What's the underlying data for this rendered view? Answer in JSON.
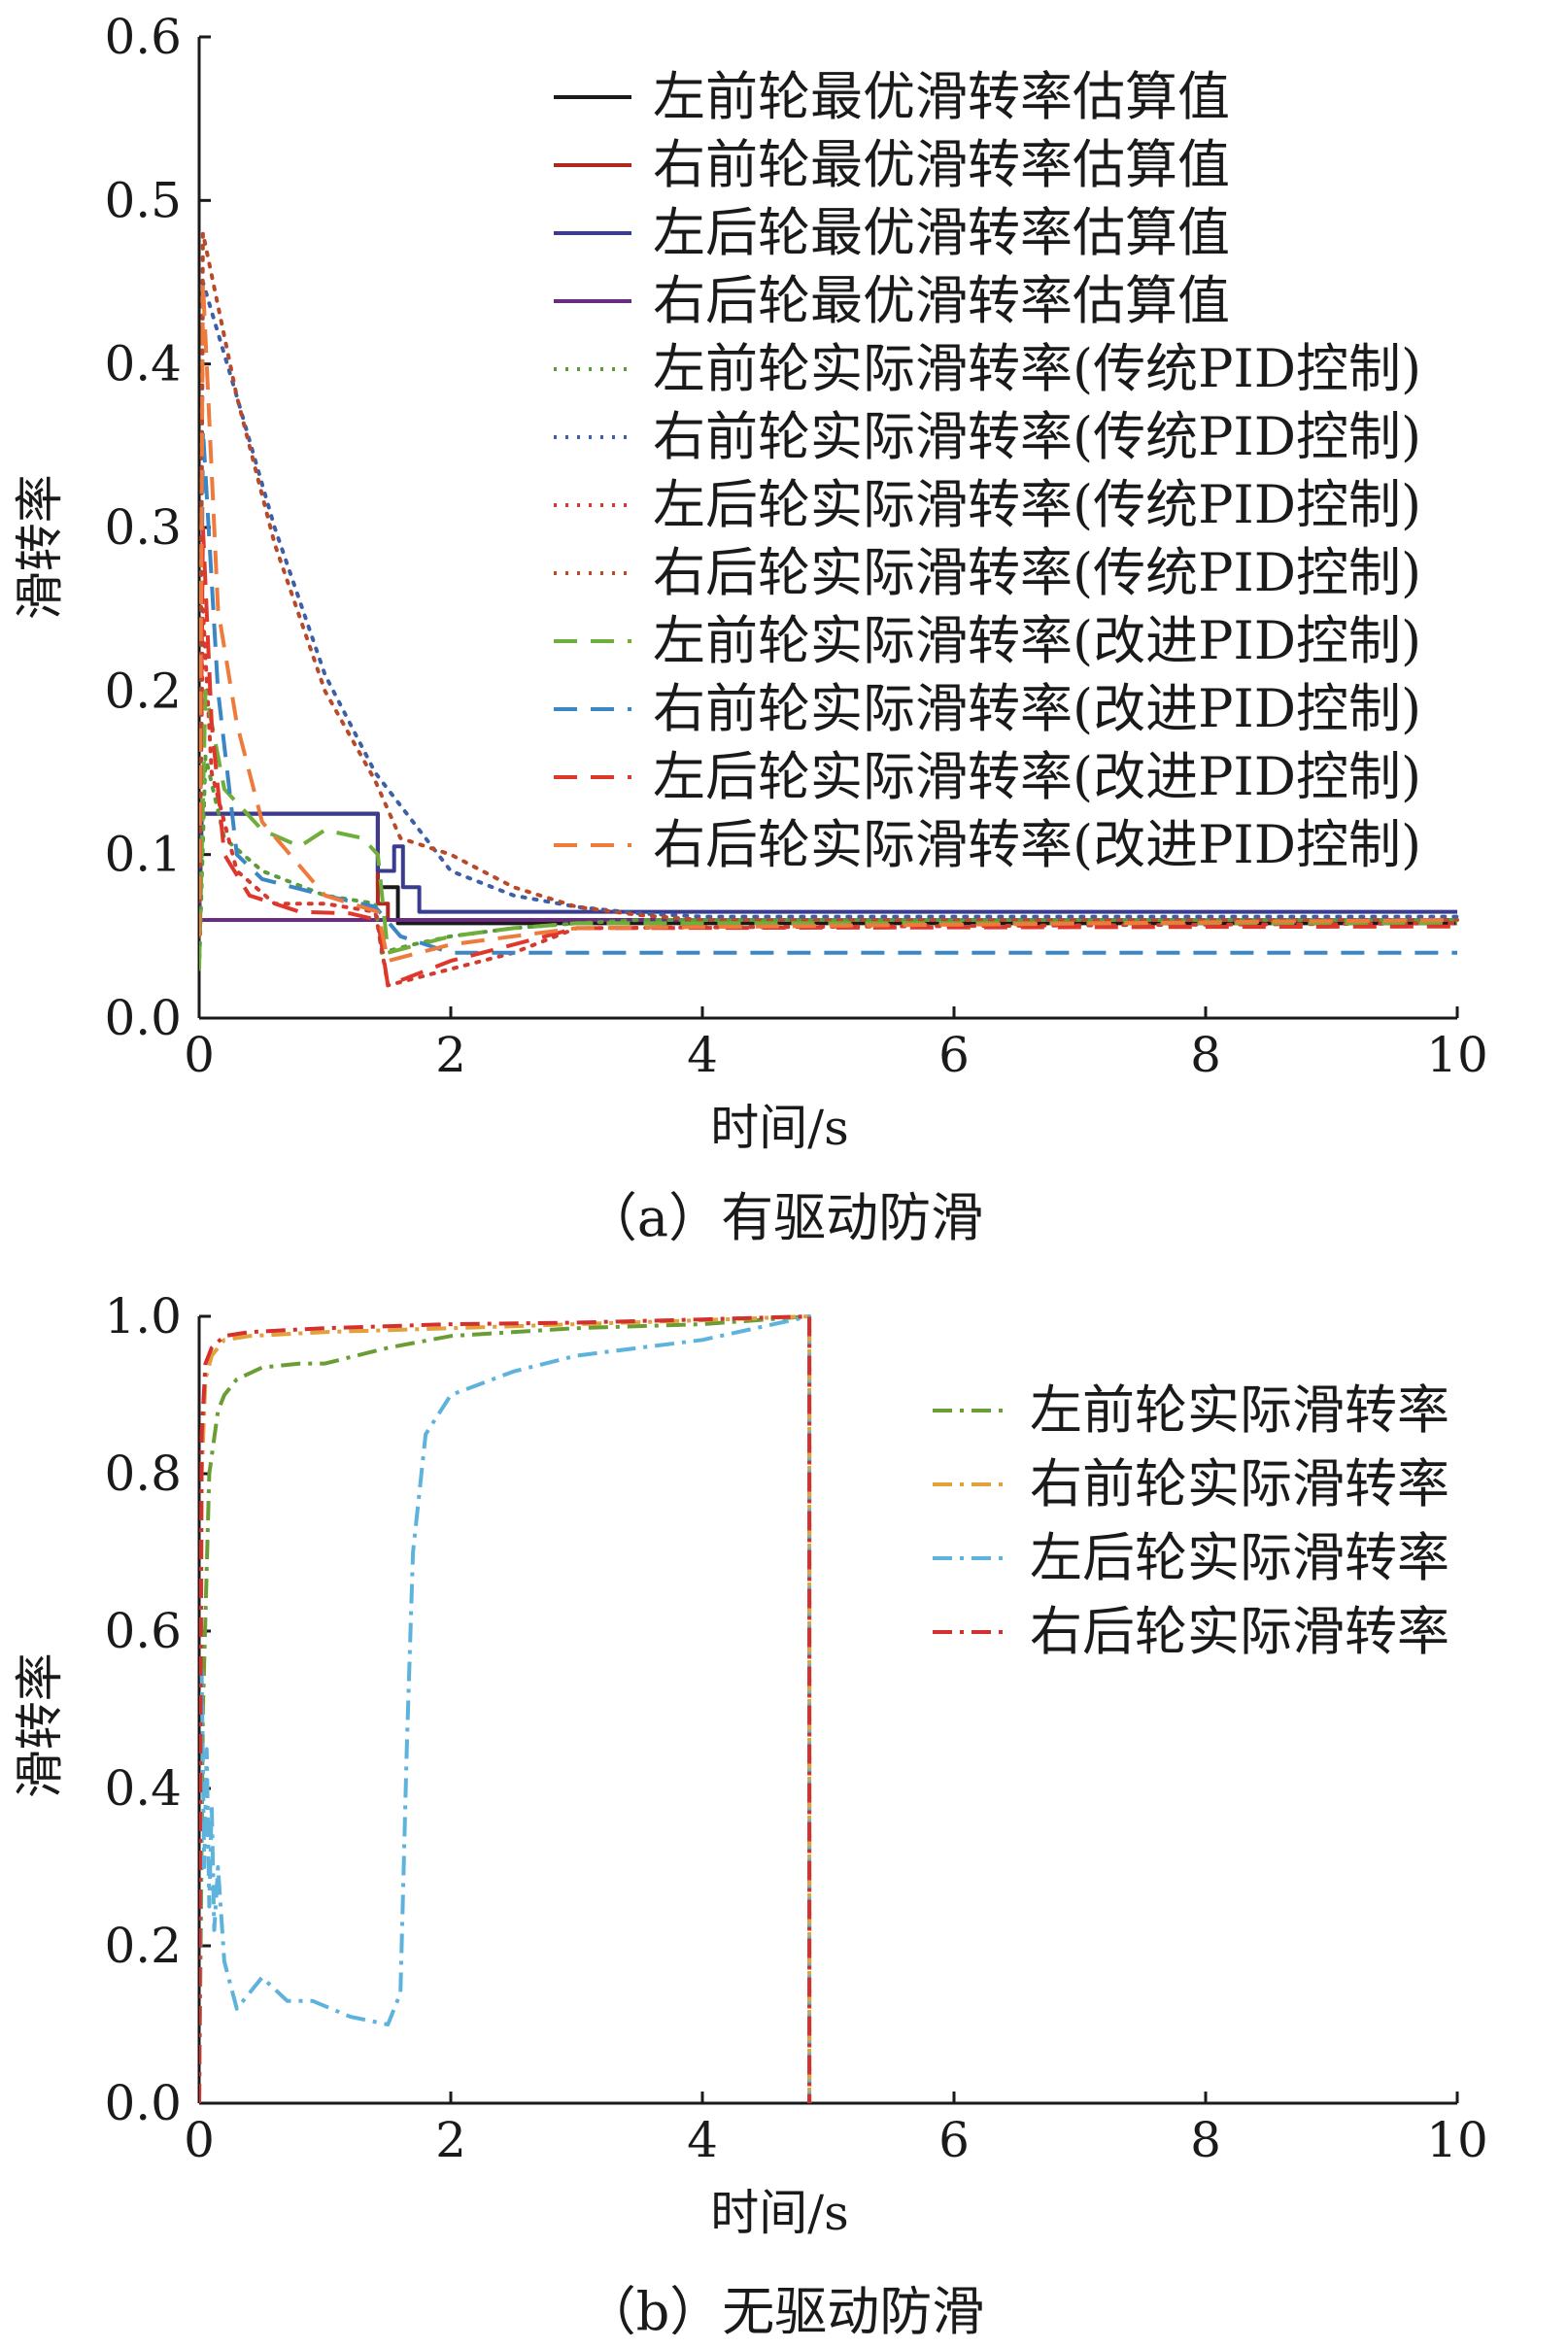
{
  "charts": [
    {
      "caption": "（a）有驱动防滑",
      "chart_data": {
        "type": "line",
        "title": "",
        "xlabel": "时间/s",
        "ylabel": "滑转率",
        "xlim": [
          0,
          10
        ],
        "ylim": [
          0,
          0.6
        ],
        "xticks": [
          "0",
          "2",
          "4",
          "6",
          "8",
          "10"
        ],
        "yticks": [
          "0.0",
          "0.1",
          "0.2",
          "0.3",
          "0.4",
          "0.5",
          "0.6"
        ],
        "legend_position": "top-right",
        "grid": false,
        "series": [
          {
            "name": "左前轮最优滑转率估算值",
            "color": "#1a1a1a",
            "style": "solid",
            "x": [
              0,
              0.02,
              1.42,
              1.42,
              1.58,
              1.58,
              10
            ],
            "y": [
              0.06,
              0.125,
              0.125,
              0.08,
              0.08,
              0.058,
              0.058
            ]
          },
          {
            "name": "右前轮最优滑转率估算值",
            "color": "#b0281f",
            "style": "solid",
            "x": [
              0,
              0.02,
              1.42,
              1.42,
              1.5,
              1.5,
              10
            ],
            "y": [
              0.06,
              0.125,
              0.125,
              0.07,
              0.07,
              0.06,
              0.06
            ]
          },
          {
            "name": "左后轮最优滑转率估算值",
            "color": "#3a3d8f",
            "style": "solid",
            "x": [
              0,
              0.02,
              1.42,
              1.42,
              1.55,
              1.55,
              1.62,
              1.62,
              1.75,
              1.75,
              10
            ],
            "y": [
              0.06,
              0.125,
              0.125,
              0.09,
              0.09,
              0.105,
              0.105,
              0.08,
              0.08,
              0.065,
              0.065
            ]
          },
          {
            "name": "右后轮最优滑转率估算值",
            "color": "#6b2b80",
            "style": "solid",
            "x": [
              0,
              0.02,
              1.42,
              1.42,
              10
            ],
            "y": [
              0.06,
              0.06,
              0.06,
              0.06,
              0.06
            ]
          },
          {
            "name": "左前轮实际滑转率(传统PID控制)",
            "color": "#5a9b3b",
            "style": "dotted",
            "x": [
              0,
              0.05,
              0.2,
              0.5,
              1.0,
              1.4,
              1.45,
              1.7,
              2.0,
              2.5,
              3.0,
              3.5,
              10
            ],
            "y": [
              0.03,
              0.16,
              0.11,
              0.09,
              0.075,
              0.07,
              0.04,
              0.045,
              0.05,
              0.055,
              0.058,
              0.06,
              0.06
            ]
          },
          {
            "name": "右前轮实际滑转率(传统PID控制)",
            "color": "#3e5fa8",
            "style": "dotted",
            "x": [
              0,
              0.03,
              0.3,
              0.6,
              1.0,
              1.4,
              1.6,
              2.0,
              2.5,
              3.0,
              3.5,
              4.0,
              10
            ],
            "y": [
              0.05,
              0.45,
              0.38,
              0.3,
              0.21,
              0.15,
              0.13,
              0.09,
              0.075,
              0.068,
              0.064,
              0.062,
              0.062
            ]
          },
          {
            "name": "左后轮实际滑转率(传统PID控制)",
            "color": "#d33a30",
            "style": "dotted",
            "x": [
              0,
              0.03,
              0.1,
              0.3,
              0.6,
              1.0,
              1.4,
              1.5,
              2.0,
              2.5,
              3.0,
              10
            ],
            "y": [
              0.05,
              0.25,
              0.15,
              0.09,
              0.07,
              0.07,
              0.065,
              0.02,
              0.03,
              0.04,
              0.055,
              0.058
            ]
          },
          {
            "name": "右后轮实际滑转率(传统PID控制)",
            "color": "#b84a2a",
            "style": "dotted",
            "x": [
              0,
              0.03,
              0.3,
              0.6,
              1.0,
              1.4,
              1.6,
              2.0,
              2.5,
              3.0,
              3.5,
              4.0,
              10
            ],
            "y": [
              0.05,
              0.48,
              0.38,
              0.29,
              0.2,
              0.145,
              0.11,
              0.1,
              0.08,
              0.068,
              0.063,
              0.06,
              0.06
            ]
          },
          {
            "name": "左前轮实际滑转率(改进PID控制)",
            "color": "#6fae3a",
            "style": "dashed",
            "x": [
              0,
              0.05,
              0.2,
              0.5,
              0.8,
              1.0,
              1.3,
              1.42,
              1.5,
              2.0,
              2.5,
              3.0,
              10
            ],
            "y": [
              0.03,
              0.2,
              0.14,
              0.115,
              0.105,
              0.115,
              0.11,
              0.1,
              0.04,
              0.05,
              0.055,
              0.058,
              0.058
            ]
          },
          {
            "name": "右前轮实际滑转率(改进PID控制)",
            "color": "#3b86c4",
            "style": "dashed",
            "x": [
              0,
              0.03,
              0.15,
              0.3,
              0.5,
              1.0,
              1.4,
              1.6,
              2.0,
              2.5,
              3.0,
              10
            ],
            "y": [
              0.05,
              0.36,
              0.2,
              0.1,
              0.085,
              0.075,
              0.068,
              0.05,
              0.04,
              0.04,
              0.04,
              0.04
            ]
          },
          {
            "name": "左后轮实际滑转率(改进PID控制)",
            "color": "#e0372d",
            "style": "dashed",
            "x": [
              0,
              0.03,
              0.1,
              0.2,
              0.4,
              0.8,
              1.2,
              1.42,
              1.5,
              2.0,
              2.5,
              3.0,
              10
            ],
            "y": [
              0.05,
              0.3,
              0.18,
              0.1,
              0.075,
              0.065,
              0.064,
              0.06,
              0.02,
              0.035,
              0.045,
              0.055,
              0.056
            ]
          },
          {
            "name": "右后轮实际滑转率(改进PID控制)",
            "color": "#ee7a3c",
            "style": "dashed",
            "x": [
              0,
              0.03,
              0.15,
              0.3,
              0.5,
              1.0,
              1.42,
              1.5,
              2.0,
              2.5,
              3.0,
              10
            ],
            "y": [
              0.05,
              0.45,
              0.25,
              0.18,
              0.12,
              0.075,
              0.065,
              0.035,
              0.045,
              0.05,
              0.055,
              0.06
            ]
          }
        ]
      }
    },
    {
      "caption": "（b）无驱动防滑",
      "chart_data": {
        "type": "line",
        "title": "",
        "xlabel": "时间/s",
        "ylabel": "滑转率",
        "xlim": [
          0,
          10
        ],
        "ylim": [
          0,
          1.0
        ],
        "xticks": [
          "0",
          "2",
          "4",
          "6",
          "8",
          "10"
        ],
        "yticks": [
          "0.0",
          "0.2",
          "0.4",
          "0.6",
          "0.8",
          "1.0"
        ],
        "legend_position": "right",
        "grid": false,
        "series": [
          {
            "name": "左前轮实际滑转率",
            "color": "#6a9e35",
            "style": "dashdot",
            "x": [
              0,
              0.03,
              0.08,
              0.15,
              0.2,
              0.3,
              0.5,
              0.8,
              1.0,
              1.5,
              2.0,
              3.0,
              4.0,
              4.85,
              4.85
            ],
            "y": [
              0.0,
              0.5,
              0.8,
              0.88,
              0.9,
              0.92,
              0.935,
              0.94,
              0.94,
              0.96,
              0.975,
              0.985,
              0.99,
              1.0,
              0.0
            ]
          },
          {
            "name": "右前轮实际滑转率",
            "color": "#e3a13a",
            "style": "dashdot",
            "x": [
              0,
              0.02,
              0.05,
              0.1,
              0.2,
              0.4,
              1.0,
              2.0,
              3.0,
              4.0,
              4.85,
              4.85
            ],
            "y": [
              0.0,
              0.8,
              0.92,
              0.95,
              0.97,
              0.975,
              0.98,
              0.985,
              0.99,
              0.995,
              1.0,
              0.0
            ]
          },
          {
            "name": "左后轮实际滑转率",
            "color": "#5db3dc",
            "style": "dashdot",
            "x": [
              0,
              0.02,
              0.04,
              0.06,
              0.08,
              0.1,
              0.12,
              0.15,
              0.2,
              0.3,
              0.5,
              0.7,
              0.9,
              1.2,
              1.5,
              1.6,
              1.65,
              1.7,
              1.8,
              2.0,
              2.5,
              3.0,
              4.0,
              4.85,
              4.85
            ],
            "y": [
              0.0,
              0.55,
              0.3,
              0.45,
              0.25,
              0.38,
              0.22,
              0.3,
              0.18,
              0.12,
              0.16,
              0.13,
              0.13,
              0.11,
              0.1,
              0.14,
              0.45,
              0.7,
              0.85,
              0.9,
              0.93,
              0.95,
              0.97,
              1.0,
              0.0
            ]
          },
          {
            "name": "右后轮实际滑转率",
            "color": "#d4302d",
            "style": "dashdot",
            "x": [
              0,
              0.02,
              0.05,
              0.1,
              0.2,
              0.4,
              1.0,
              2.0,
              3.0,
              4.0,
              4.85,
              4.85
            ],
            "y": [
              0.0,
              0.85,
              0.94,
              0.96,
              0.975,
              0.98,
              0.985,
              0.99,
              0.992,
              0.996,
              1.0,
              0.0
            ]
          }
        ]
      }
    }
  ]
}
